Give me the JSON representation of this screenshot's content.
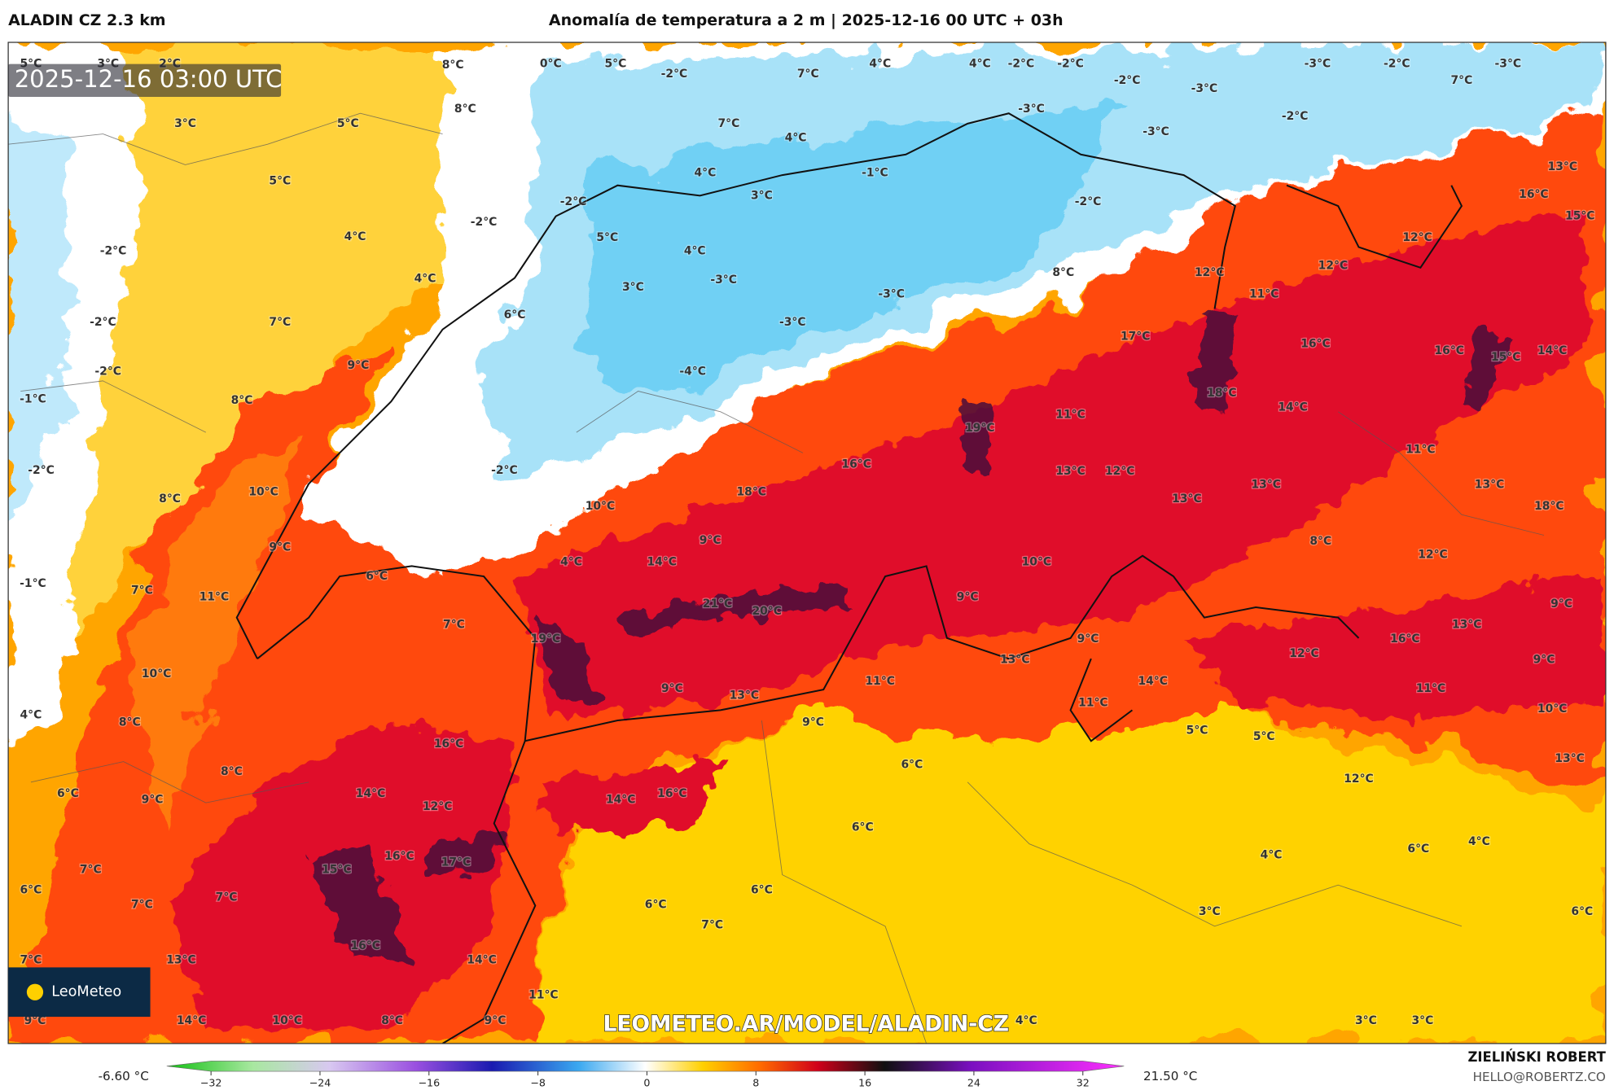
{
  "header": {
    "model": "ALADIN CZ 2.3 km",
    "title": "Anomalía de temperatura a 2 m | 2025-12-16 00 UTC + 03h",
    "timestamp": "2025-12-16 03:00 UTC"
  },
  "map": {
    "watermark": "LEOMETEO.AR/MODEL/ALADIN-CZ",
    "logo": "LeoMeteo",
    "labels": [
      "5°C",
      "3°C",
      "2°C",
      "8°C",
      "0°C",
      "5°C",
      "-2°C",
      "7°C",
      "4°C",
      "4°C",
      "-2°C",
      "-2°C",
      "-2°C",
      "-3°C",
      "-3°C",
      "-2°C",
      "7°C",
      "-3°C",
      "8°C",
      "3°C",
      "5°C",
      "7°C",
      "4°C",
      "-3°C",
      "-2°C",
      "-3°C",
      "5°C",
      "4°C",
      "-1°C",
      "3°C",
      "-2°C",
      "-2°C",
      "-2°C",
      "13°C",
      "16°C",
      "15°C",
      "-2°C",
      "4°C",
      "5°C",
      "4°C",
      "12°C",
      "12°C",
      "4°C",
      "-3°C",
      "3°C",
      "8°C",
      "12°C",
      "-3°C",
      "11°C",
      "-2°C",
      "7°C",
      "6°C",
      "-3°C",
      "17°C",
      "16°C",
      "16°C",
      "15°C",
      "14°C",
      "-2°C",
      "9°C",
      "-4°C",
      "-1°C",
      "8°C",
      "18°C",
      "14°C",
      "11°C",
      "19°C",
      "-2°C",
      "10°C",
      "16°C",
      "-2°C",
      "13°C",
      "12°C",
      "11°C",
      "13°C",
      "13°C",
      "8°C",
      "18°C",
      "10°C",
      "13°C",
      "18°C",
      "9°C",
      "9°C",
      "8°C",
      "4°C",
      "14°C",
      "6°C",
      "10°C",
      "12°C",
      "-1°C",
      "7°C",
      "11°C",
      "21°C",
      "20°C",
      "9°C",
      "9°C",
      "7°C",
      "13°C",
      "19°C",
      "9°C",
      "16°C",
      "12°C",
      "13°C",
      "9°C",
      "10°C",
      "9°C",
      "13°C",
      "11°C",
      "14°C",
      "11°C",
      "11°C",
      "4°C",
      "8°C",
      "9°C",
      "10°C",
      "5°C",
      "5°C",
      "16°C",
      "8°C",
      "6°C",
      "13°C",
      "12°C",
      "6°C",
      "14°C",
      "16°C",
      "14°C",
      "9°C",
      "12°C",
      "6°C",
      "4°C",
      "6°C",
      "4°C",
      "16°C",
      "17°C",
      "15°C",
      "7°C",
      "6°C",
      "6°C",
      "7°C",
      "7°C",
      "6°C",
      "3°C",
      "6°C",
      "7°C",
      "16°C",
      "13°C",
      "14°C",
      "7°C",
      "11°C",
      "14°C",
      "10°C",
      "8°C",
      "9°C",
      "4°C",
      "3°C",
      "3°C",
      "9°C"
    ]
  },
  "colorbar": {
    "lim": [
      -32,
      32
    ],
    "ticks": [
      {
        "value": -32,
        "label": "−32"
      },
      {
        "value": -24,
        "label": "−24"
      },
      {
        "value": -16,
        "label": "−16"
      },
      {
        "value": -8,
        "label": "−8"
      },
      0,
      8,
      16,
      24,
      32
    ],
    "min_label": "-6.60 °C",
    "max_label": "21.50 °C"
  },
  "footer": {
    "author": "ZIELIŃSKI ROBERT",
    "email": "HELLO@ROBERTZ.CO"
  }
}
